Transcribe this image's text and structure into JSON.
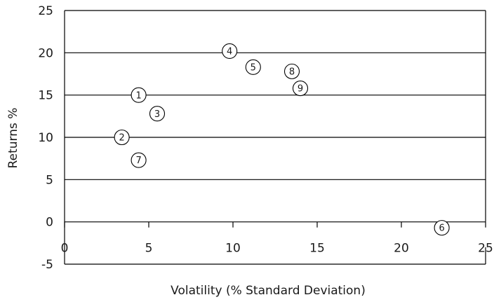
{
  "chart_data": {
    "type": "scatter",
    "xlabel": "Volatility (% Standard Deviation)",
    "ylabel": "Returns %",
    "xlim": [
      0,
      25
    ],
    "ylim": [
      -5,
      25
    ],
    "x_ticks": [
      0,
      5,
      10,
      15,
      20,
      25
    ],
    "y_ticks": [
      -5,
      0,
      5,
      10,
      15,
      20,
      25
    ],
    "x_tick_labels": [
      "0",
      "5",
      "10",
      "15",
      "20",
      "25"
    ],
    "y_tick_labels": [
      "-5",
      "0",
      "5",
      "10",
      "15",
      "20",
      "25"
    ],
    "grid": "horizontal",
    "points": [
      {
        "label": "1",
        "x": 4.4,
        "y": 15.0
      },
      {
        "label": "2",
        "x": 3.4,
        "y": 10.0
      },
      {
        "label": "3",
        "x": 5.5,
        "y": 12.8
      },
      {
        "label": "4",
        "x": 9.8,
        "y": 20.2
      },
      {
        "label": "5",
        "x": 11.2,
        "y": 18.3
      },
      {
        "label": "6",
        "x": 22.4,
        "y": -0.7
      },
      {
        "label": "7",
        "x": 4.4,
        "y": 7.3
      },
      {
        "label": "8",
        "x": 13.5,
        "y": 17.8
      },
      {
        "label": "9",
        "x": 14.0,
        "y": 15.8
      }
    ],
    "colors": {
      "marker_fill": "#ffffff",
      "marker_stroke": "#000000",
      "grid": "#000000"
    }
  }
}
